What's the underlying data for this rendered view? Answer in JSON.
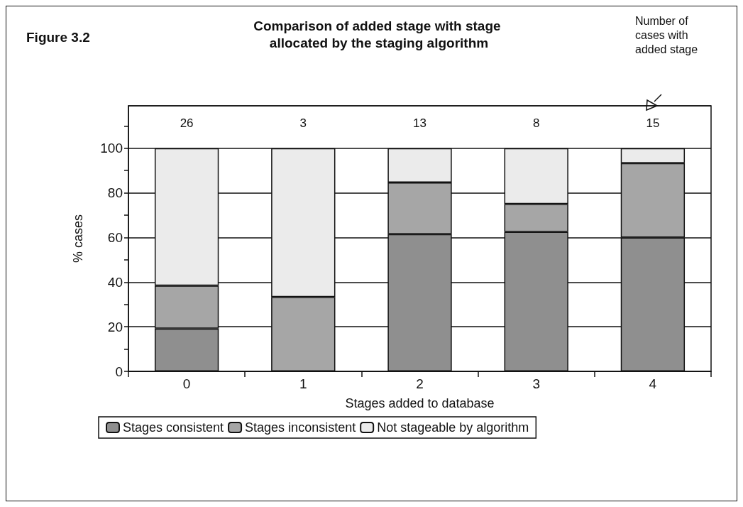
{
  "chart_data": {
    "type": "bar",
    "title": "Comparison of added stage with stage allocated by the staging algorithm",
    "xlabel": "Stages added to database",
    "ylabel": "% cases",
    "categories": [
      "0",
      "1",
      "2",
      "3",
      "4"
    ],
    "stacked": true,
    "series": [
      {
        "name": "Stages consistent",
        "color": "#8f8f8f",
        "values": [
          19.2,
          0,
          61.5,
          62.5,
          60
        ]
      },
      {
        "name": "Stages inconsistent",
        "color": "#a6a6a6",
        "values": [
          19.2,
          33.3,
          23.1,
          12.5,
          33.3
        ]
      },
      {
        "name": "Not stageable by algorithm",
        "color": "#ebebeb",
        "values": [
          61.6,
          66.7,
          15.4,
          25,
          6.7
        ]
      }
    ],
    "ylim": [
      0,
      119
    ],
    "yticks": [
      0,
      {
        "value": 10,
        "label": null
      },
      20,
      {
        "value": 30,
        "label": null
      },
      40,
      {
        "value": 50,
        "label": null
      },
      60,
      {
        "value": 70,
        "label": null
      },
      80,
      {
        "value": 90,
        "label": null
      },
      100,
      {
        "value": 110,
        "label": null
      }
    ],
    "grid": "y",
    "legend": "bottom",
    "annotations": [
      "Figure 3.2",
      "Number of cases with added stage",
      "26",
      "3",
      "13",
      "8",
      "15"
    ]
  }
}
